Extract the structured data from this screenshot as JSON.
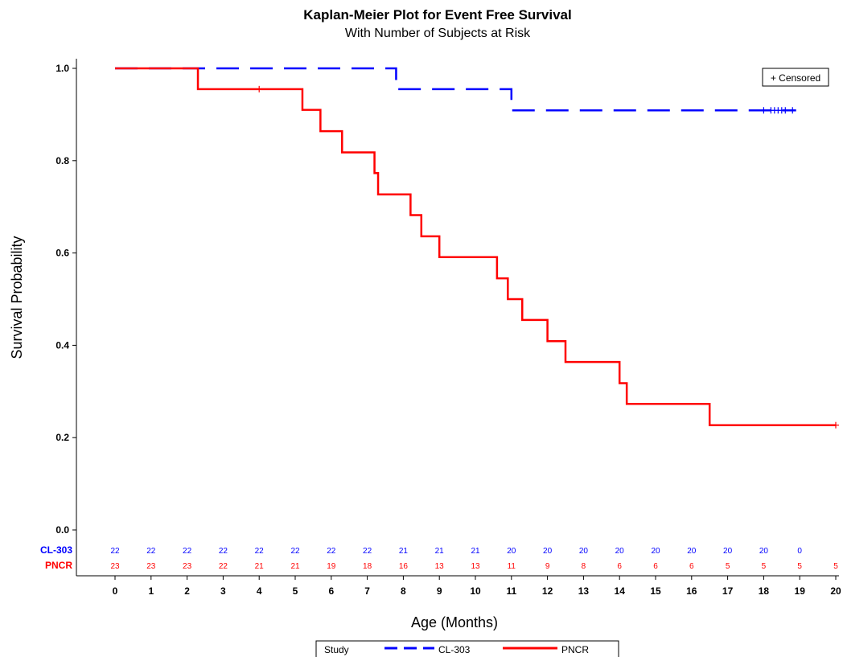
{
  "chart_data": {
    "type": "line",
    "subtype": "kaplan-meier-step",
    "title": "Kaplan-Meier Plot for Event Free Survival",
    "subtitle": "With Number of Subjects at Risk",
    "xlabel": "Age (Months)",
    "ylabel": "Survival Probability",
    "xlim": [
      -1.2,
      20
    ],
    "ylim": [
      -0.05,
      1.02
    ],
    "x_ticks": [
      0,
      1,
      2,
      3,
      4,
      5,
      6,
      7,
      8,
      9,
      10,
      11,
      12,
      13,
      14,
      15,
      16,
      17,
      18,
      19,
      20
    ],
    "y_ticks": [
      0.0,
      0.2,
      0.4,
      0.6,
      0.8,
      1.0
    ],
    "y_tick_labels": [
      "0.0",
      "0.2",
      "0.4",
      "0.6",
      "0.8",
      "1.0"
    ],
    "censored_legend": "+ Censored",
    "legend_title": "Study",
    "series": [
      {
        "name": "CL-303",
        "color": "#0000ff",
        "dash": true,
        "steps": [
          [
            0,
            1.0
          ],
          [
            7.8,
            0.955
          ],
          [
            11.0,
            0.909
          ]
        ],
        "end_x": 18.9,
        "censored": [
          18.0,
          18.2,
          18.3,
          18.4,
          18.5,
          18.6,
          18.8
        ]
      },
      {
        "name": "PNCR",
        "color": "#ff0000",
        "dash": false,
        "steps": [
          [
            0,
            1.0
          ],
          [
            2.3,
            0.955
          ],
          [
            5.2,
            0.91
          ],
          [
            5.7,
            0.864
          ],
          [
            6.3,
            0.818
          ],
          [
            7.2,
            0.773
          ],
          [
            7.3,
            0.727
          ],
          [
            8.2,
            0.682
          ],
          [
            8.5,
            0.636
          ],
          [
            9.0,
            0.591
          ],
          [
            10.6,
            0.545
          ],
          [
            10.9,
            0.5
          ],
          [
            11.3,
            0.455
          ],
          [
            12.0,
            0.409
          ],
          [
            12.5,
            0.364
          ],
          [
            14.0,
            0.318
          ],
          [
            14.2,
            0.273
          ],
          [
            16.5,
            0.227
          ]
        ],
        "end_x": 20.0,
        "censored": [
          4.0,
          20.0
        ]
      }
    ],
    "risk_table": {
      "times": [
        0,
        1,
        2,
        3,
        4,
        5,
        6,
        7,
        8,
        9,
        10,
        11,
        12,
        13,
        14,
        15,
        16,
        17,
        18,
        19,
        20
      ],
      "rows": [
        {
          "label": "CL-303",
          "color": "#0000ff",
          "values": [
            "22",
            "22",
            "22",
            "22",
            "22",
            "22",
            "22",
            "22",
            "21",
            "21",
            "21",
            "20",
            "20",
            "20",
            "20",
            "20",
            "20",
            "20",
            "20",
            "0",
            ""
          ]
        },
        {
          "label": "PNCR",
          "color": "#ff0000",
          "values": [
            "23",
            "23",
            "23",
            "22",
            "21",
            "21",
            "19",
            "18",
            "16",
            "13",
            "13",
            "11",
            "9",
            "8",
            "6",
            "6",
            "6",
            "5",
            "5",
            "5",
            "5"
          ]
        }
      ]
    }
  }
}
